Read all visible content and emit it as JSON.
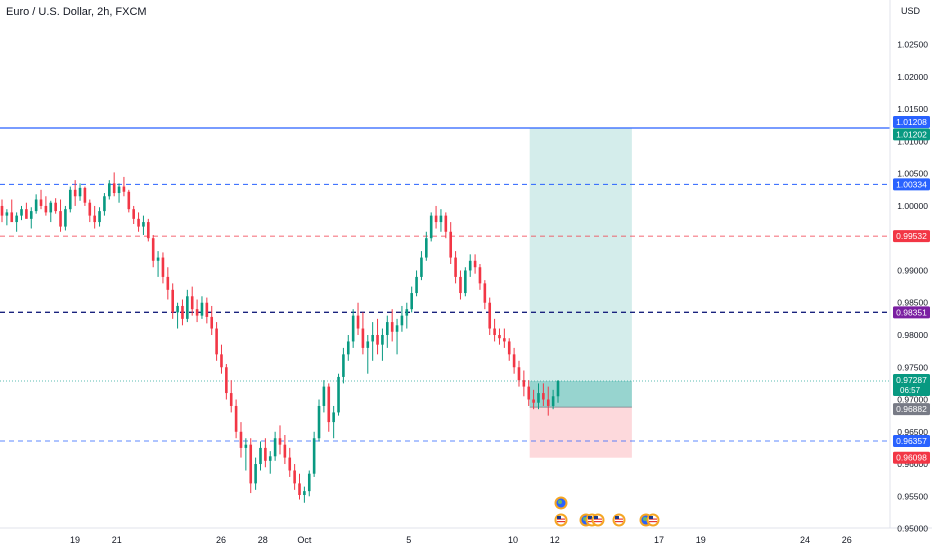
{
  "header": {
    "symbol_title": "Euro / U.S. Dollar, 2h, FXCM",
    "currency": "USD"
  },
  "chart_data": {
    "type": "candlestick",
    "ylim": [
      0.95,
      1.03
    ],
    "y_ticks": [
      {
        "value": 1.025,
        "label": "1.02500"
      },
      {
        "value": 1.02,
        "label": "1.02000"
      },
      {
        "value": 1.015,
        "label": "1.01500"
      },
      {
        "value": 1.01,
        "label": "1.01000"
      },
      {
        "value": 1.005,
        "label": "1.00500"
      },
      {
        "value": 1.0,
        "label": "1.00000"
      },
      {
        "value": 0.995,
        "label": "0.99500"
      },
      {
        "value": 0.99,
        "label": "0.99000"
      },
      {
        "value": 0.985,
        "label": "0.98500"
      },
      {
        "value": 0.98,
        "label": "0.98000"
      },
      {
        "value": 0.975,
        "label": "0.97500"
      },
      {
        "value": 0.97,
        "label": "0.97000"
      },
      {
        "value": 0.965,
        "label": "0.96500"
      },
      {
        "value": 0.96,
        "label": "0.96000"
      },
      {
        "value": 0.955,
        "label": "0.95500"
      },
      {
        "value": 0.95,
        "label": "0.95000"
      }
    ],
    "x_ticks": [
      {
        "day": 19,
        "label": "19"
      },
      {
        "day": 21,
        "label": "21"
      },
      {
        "day": 26,
        "label": "26"
      },
      {
        "day": 28,
        "label": "28"
      },
      {
        "day": 30,
        "label": "Oct"
      },
      {
        "day": 35,
        "label": "5"
      },
      {
        "day": 40,
        "label": "10"
      },
      {
        "day": 42,
        "label": "12"
      },
      {
        "day": 47,
        "label": "17"
      },
      {
        "day": 49,
        "label": "19"
      },
      {
        "day": 54,
        "label": "24"
      },
      {
        "day": 56,
        "label": "26"
      }
    ],
    "horizontal_lines": [
      {
        "name": "resistance-solid",
        "value": 1.01208,
        "color": "#2962ff",
        "style": "solid",
        "width": 1.2
      },
      {
        "name": "level-1-00334",
        "value": 1.00334,
        "color": "#2962ff",
        "style": "dashed",
        "width": 1
      },
      {
        "name": "level-0-99532",
        "value": 0.99532,
        "color": "#f23645",
        "style": "dashed",
        "width": 0.8
      },
      {
        "name": "level-0-98351",
        "value": 0.98351,
        "color": "#1a237e",
        "style": "dashed",
        "width": 1.4
      },
      {
        "name": "level-0-96357",
        "value": 0.96357,
        "color": "#2962ff",
        "style": "dashed",
        "width": 0.8
      },
      {
        "name": "current-price-line",
        "value": 0.97287,
        "color": "#26a69a",
        "style": "dotted",
        "width": 0.8
      }
    ],
    "price_labels": [
      {
        "label": "1.01208",
        "value": 1.01208,
        "color": "#2962ff"
      },
      {
        "label": "1.01202",
        "value": 1.01202,
        "color": "#089981"
      },
      {
        "label": "1.00334",
        "value": 1.00334,
        "color": "#2962ff"
      },
      {
        "label": "0.99532",
        "value": 0.99532,
        "color": "#f23645"
      },
      {
        "label": "0.98351",
        "value": 0.98351,
        "color": "#7b1fa2"
      },
      {
        "label": "0.97287",
        "value": 0.97287,
        "color": "#089981",
        "sub": "06:57"
      },
      {
        "label": "0.96882",
        "value": 0.96882,
        "color": "#787b86"
      },
      {
        "label": "0.96357",
        "value": 0.96357,
        "color": "#2962ff"
      },
      {
        "label": "0.96098",
        "value": 0.96098,
        "color": "#f23645"
      }
    ],
    "long_position": {
      "start_day": 40.8,
      "end_day": 45.7,
      "entry": 0.96882,
      "target": 1.01202,
      "stop": 0.96098,
      "current": 0.97287,
      "profit_color": "#26a69a",
      "loss_color": "#f7525f"
    },
    "candles_ohlc": [
      [
        1.0,
        1.001,
        0.9975,
        0.9985
      ],
      [
        0.9985,
        0.9995,
        0.997,
        0.999
      ],
      [
        0.999,
        1.001,
        0.9982,
        0.9975
      ],
      [
        0.9975,
        0.999,
        0.996,
        0.9985
      ],
      [
        0.9985,
        1.0,
        0.9978,
        0.9995
      ],
      [
        0.9995,
        1.0005,
        0.9982,
        0.998
      ],
      [
        0.998,
        0.9998,
        0.9965,
        0.9992
      ],
      [
        0.9992,
        1.0018,
        0.9988,
        1.001
      ],
      [
        1.001,
        1.0025,
        0.9995,
        1.0
      ],
      [
        1.0,
        1.0015,
        0.9985,
        0.999
      ],
      [
        0.999,
        1.0008,
        0.9975,
        1.0005
      ],
      [
        1.0005,
        1.0012,
        0.9988,
        0.9992
      ],
      [
        0.9992,
        1.001,
        0.996,
        0.9968
      ],
      [
        0.9968,
        1.0,
        0.9962,
        0.9995
      ],
      [
        0.9995,
        1.003,
        0.999,
        1.0025
      ],
      [
        1.0025,
        1.004,
        1.0,
        1.0015
      ],
      [
        1.0015,
        1.0035,
        1.0008,
        1.0028
      ],
      [
        1.0028,
        1.003,
        1.0,
        1.0005
      ],
      [
        1.0005,
        1.001,
        0.9975,
        0.9985
      ],
      [
        0.9985,
        1.0,
        0.9965,
        0.9975
      ],
      [
        0.9975,
        0.9998,
        0.9968,
        0.9992
      ],
      [
        0.9992,
        1.002,
        0.9985,
        1.0015
      ],
      [
        1.0015,
        1.004,
        1.001,
        1.0035
      ],
      [
        1.0035,
        1.0052,
        1.0015,
        1.002
      ],
      [
        1.002,
        1.0035,
        1.0005,
        1.003
      ],
      [
        1.003,
        1.0045,
        1.0015,
        1.0022
      ],
      [
        1.0022,
        1.0025,
        0.999,
        0.9995
      ],
      [
        0.9995,
        1.0,
        0.9972,
        0.998
      ],
      [
        0.998,
        0.999,
        0.996,
        0.9968
      ],
      [
        0.9968,
        0.9985,
        0.9955,
        0.9975
      ],
      [
        0.9975,
        0.998,
        0.9945,
        0.995
      ],
      [
        0.995,
        0.9955,
        0.9905,
        0.9915
      ],
      [
        0.9915,
        0.993,
        0.989,
        0.992
      ],
      [
        0.992,
        0.9928,
        0.988,
        0.989
      ],
      [
        0.989,
        0.9905,
        0.9855,
        0.987
      ],
      [
        0.987,
        0.988,
        0.9825,
        0.9835
      ],
      [
        0.9835,
        0.985,
        0.981,
        0.9845
      ],
      [
        0.9845,
        0.9855,
        0.9815,
        0.9825
      ],
      [
        0.9825,
        0.987,
        0.982,
        0.986
      ],
      [
        0.986,
        0.9875,
        0.983,
        0.984
      ],
      [
        0.984,
        0.9855,
        0.982,
        0.983
      ],
      [
        0.983,
        0.986,
        0.9825,
        0.985
      ],
      [
        0.985,
        0.9858,
        0.9818,
        0.9828
      ],
      [
        0.9828,
        0.9845,
        0.98,
        0.981
      ],
      [
        0.981,
        0.982,
        0.976,
        0.977
      ],
      [
        0.977,
        0.9785,
        0.974,
        0.975
      ],
      [
        0.975,
        0.9755,
        0.97,
        0.971
      ],
      [
        0.971,
        0.973,
        0.968,
        0.969
      ],
      [
        0.969,
        0.97,
        0.964,
        0.965
      ],
      [
        0.965,
        0.9665,
        0.961,
        0.9625
      ],
      [
        0.9625,
        0.964,
        0.959,
        0.963
      ],
      [
        0.963,
        0.964,
        0.9555,
        0.957
      ],
      [
        0.957,
        0.961,
        0.956,
        0.96
      ],
      [
        0.96,
        0.9635,
        0.959,
        0.9625
      ],
      [
        0.9625,
        0.964,
        0.9595,
        0.9605
      ],
      [
        0.9605,
        0.962,
        0.9585,
        0.9612
      ],
      [
        0.9612,
        0.965,
        0.9605,
        0.964
      ],
      [
        0.964,
        0.966,
        0.9615,
        0.963
      ],
      [
        0.963,
        0.9645,
        0.96,
        0.961
      ],
      [
        0.961,
        0.9625,
        0.958,
        0.959
      ],
      [
        0.959,
        0.96,
        0.956,
        0.957
      ],
      [
        0.957,
        0.9585,
        0.9545,
        0.9552
      ],
      [
        0.9552,
        0.9565,
        0.954,
        0.9558
      ],
      [
        0.9558,
        0.959,
        0.955,
        0.9585
      ],
      [
        0.9585,
        0.965,
        0.958,
        0.964
      ],
      [
        0.964,
        0.97,
        0.9635,
        0.969
      ],
      [
        0.969,
        0.973,
        0.968,
        0.972
      ],
      [
        0.972,
        0.9725,
        0.965,
        0.9665
      ],
      [
        0.9665,
        0.969,
        0.964,
        0.968
      ],
      [
        0.968,
        0.974,
        0.9675,
        0.9735
      ],
      [
        0.9735,
        0.978,
        0.9725,
        0.977
      ],
      [
        0.977,
        0.98,
        0.976,
        0.979
      ],
      [
        0.979,
        0.984,
        0.978,
        0.983
      ],
      [
        0.983,
        0.985,
        0.98,
        0.981
      ],
      [
        0.981,
        0.9835,
        0.977,
        0.978
      ],
      [
        0.978,
        0.98,
        0.974,
        0.979
      ],
      [
        0.979,
        0.982,
        0.976,
        0.98
      ],
      [
        0.98,
        0.9825,
        0.977,
        0.9785
      ],
      [
        0.9785,
        0.981,
        0.976,
        0.98
      ],
      [
        0.98,
        0.983,
        0.978,
        0.982
      ],
      [
        0.982,
        0.984,
        0.979,
        0.9805
      ],
      [
        0.9805,
        0.9825,
        0.977,
        0.9815
      ],
      [
        0.9815,
        0.9845,
        0.9805,
        0.983
      ],
      [
        0.983,
        0.985,
        0.981,
        0.984
      ],
      [
        0.984,
        0.9875,
        0.9835,
        0.9865
      ],
      [
        0.9865,
        0.99,
        0.986,
        0.989
      ],
      [
        0.989,
        0.993,
        0.9885,
        0.992
      ],
      [
        0.992,
        0.996,
        0.9915,
        0.995
      ],
      [
        0.995,
        0.999,
        0.9945,
        0.9985
      ],
      [
        0.9985,
        1.0,
        0.9965,
        0.9975
      ],
      [
        0.9975,
        0.9995,
        0.996,
        0.9985
      ],
      [
        0.9985,
        0.999,
        0.995,
        0.996
      ],
      [
        0.996,
        0.9975,
        0.991,
        0.992
      ],
      [
        0.992,
        0.993,
        0.988,
        0.989
      ],
      [
        0.989,
        0.99,
        0.9855,
        0.9865
      ],
      [
        0.9865,
        0.9905,
        0.986,
        0.99
      ],
      [
        0.99,
        0.9925,
        0.989,
        0.9915
      ],
      [
        0.9915,
        0.9925,
        0.9895,
        0.9905
      ],
      [
        0.9905,
        0.991,
        0.987,
        0.988
      ],
      [
        0.988,
        0.9885,
        0.984,
        0.985
      ],
      [
        0.985,
        0.9858,
        0.98,
        0.981
      ],
      [
        0.981,
        0.9825,
        0.979,
        0.98
      ],
      [
        0.98,
        0.981,
        0.9785,
        0.9795
      ],
      [
        0.9795,
        0.981,
        0.978,
        0.979
      ],
      [
        0.979,
        0.9795,
        0.976,
        0.977
      ],
      [
        0.977,
        0.978,
        0.974,
        0.975
      ],
      [
        0.975,
        0.976,
        0.972,
        0.973
      ],
      [
        0.973,
        0.9745,
        0.9705,
        0.972
      ],
      [
        0.972,
        0.973,
        0.969,
        0.97
      ],
      [
        0.97,
        0.9715,
        0.9685,
        0.9695
      ],
      [
        0.9695,
        0.9725,
        0.9685,
        0.971
      ],
      [
        0.971,
        0.9725,
        0.969,
        0.97
      ],
      [
        0.97,
        0.972,
        0.9675,
        0.969
      ],
      [
        0.969,
        0.9715,
        0.9685,
        0.9705
      ],
      [
        0.9705,
        0.973,
        0.9695,
        0.9729
      ]
    ]
  }
}
